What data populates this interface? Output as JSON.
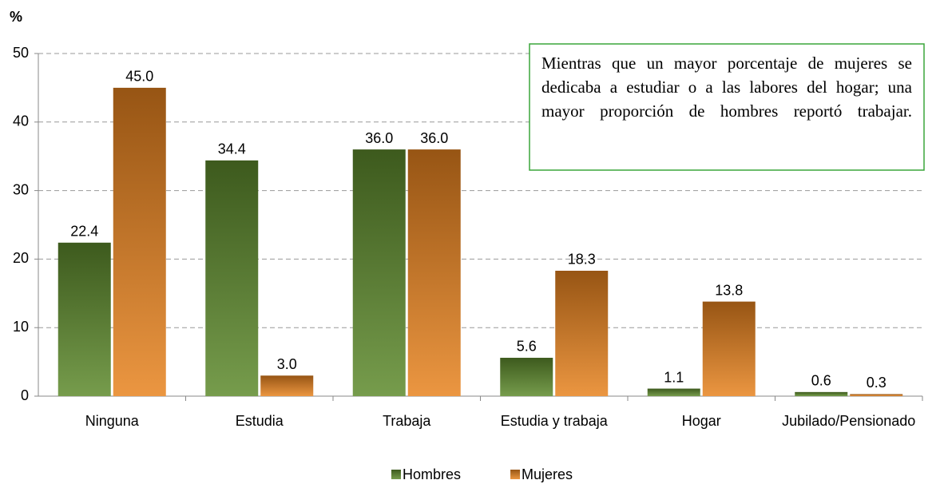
{
  "chart_data": {
    "type": "bar",
    "y_label": "%",
    "categories": [
      "Ninguna",
      "Estudia",
      "Trabaja",
      "Estudia y trabaja",
      "Hogar",
      "Jubilado/Pensionado"
    ],
    "series": [
      {
        "name": "Hombres",
        "color": "#5e8a2c",
        "values": [
          22.4,
          34.4,
          36,
          5.6,
          1.1,
          0.6
        ],
        "value_labels": [
          "22.4",
          "34.4",
          "36.0",
          "5.6",
          "1.1",
          "0.6"
        ]
      },
      {
        "name": "Mujeres",
        "color": "#e8831f",
        "values": [
          45,
          3,
          36,
          18.3,
          13.8,
          0.3
        ],
        "value_labels": [
          "45.0",
          "3.0",
          "36.0",
          "18.3",
          "13.8",
          "0.3"
        ]
      }
    ],
    "ylim": [
      0,
      50
    ],
    "yticks": [
      0,
      10,
      20,
      30,
      40,
      50
    ],
    "grid": true,
    "annotation": "Mientras que un mayor porcentaje de mujeres se dedicaba a estudiar o a las labores del hogar; una mayor proporción de hombres reportó trabajar.",
    "legend": "bottom"
  }
}
